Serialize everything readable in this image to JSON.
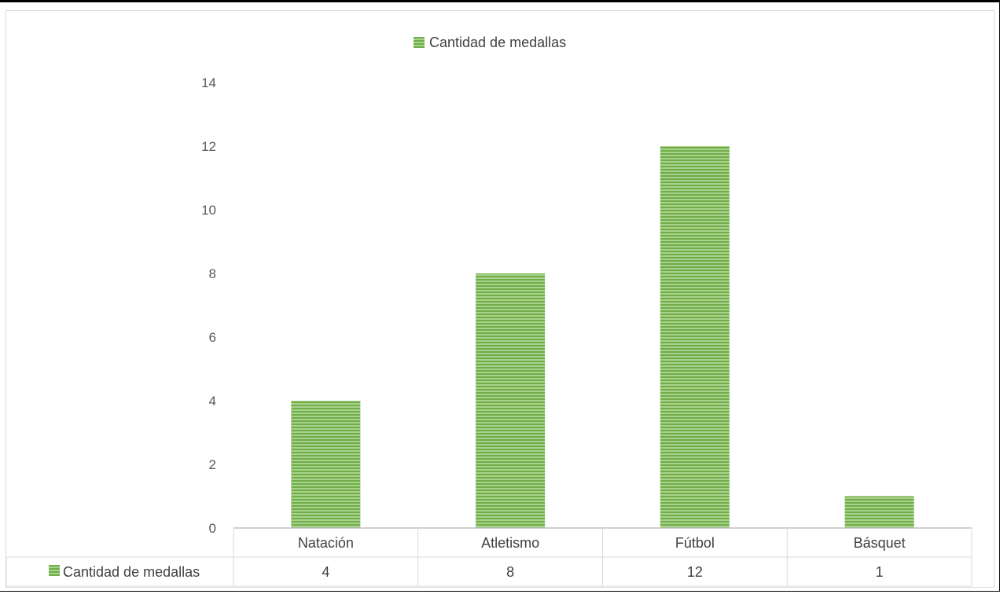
{
  "chart_data": {
    "type": "bar",
    "categories": [
      "Natación",
      "Atletismo",
      "Fútbol",
      "Básquet"
    ],
    "series": [
      {
        "name": "Cantidad de medallas",
        "values": [
          4,
          8,
          12,
          1
        ],
        "color": "#70ad47"
      }
    ],
    "yticks": [
      "0",
      "2",
      "4",
      "6",
      "8",
      "10",
      "12",
      "14"
    ],
    "ylim": [
      0,
      14
    ],
    "title": "",
    "xlabel": "",
    "ylabel": "",
    "legend_position": "top",
    "data_table": true,
    "grid": false,
    "bar_fill": "horizontal-stripes"
  }
}
